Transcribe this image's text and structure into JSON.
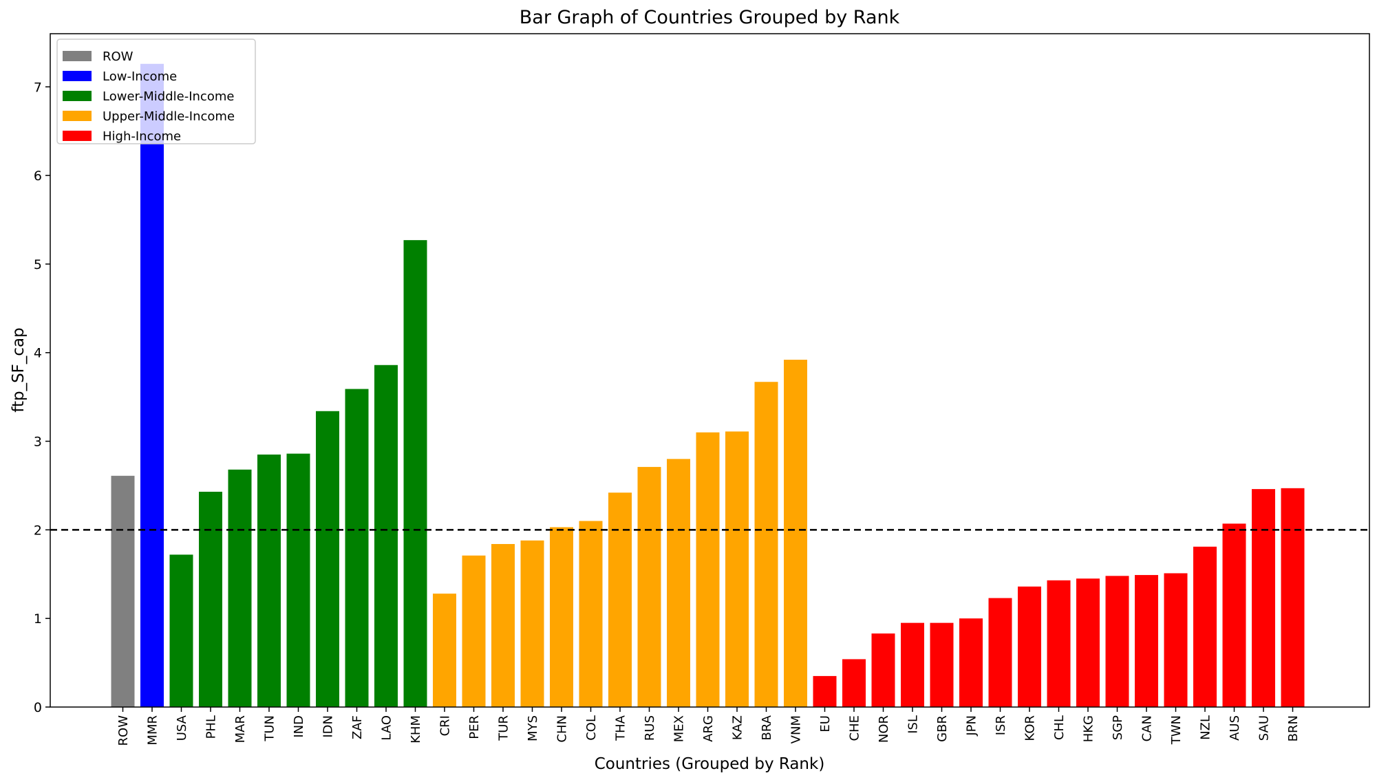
{
  "chart_data": {
    "type": "bar",
    "title": "Bar Graph of Countries Grouped by Rank",
    "xlabel": "Countries (Grouped by Rank)",
    "ylabel": "ftp_SF_cap",
    "ylim": [
      0,
      7.6
    ],
    "yticks": [
      0,
      1,
      2,
      3,
      4,
      5,
      6,
      7
    ],
    "reference_line": {
      "y": 2.0,
      "style": "dashed",
      "color": "#000000"
    },
    "legend_position": "top-left",
    "groups": [
      {
        "name": "ROW",
        "color": "#808080"
      },
      {
        "name": "Low-Income",
        "color": "#0000ff"
      },
      {
        "name": "Lower-Middle-Income",
        "color": "#008000"
      },
      {
        "name": "Upper-Middle-Income",
        "color": "#ffa500"
      },
      {
        "name": "High-Income",
        "color": "#ff0000"
      }
    ],
    "categories": [
      "ROW",
      "MMR",
      "USA",
      "PHL",
      "MAR",
      "TUN",
      "IND",
      "IDN",
      "ZAF",
      "LAO",
      "KHM",
      "CRI",
      "PER",
      "TUR",
      "MYS",
      "CHN",
      "COL",
      "THA",
      "RUS",
      "MEX",
      "ARG",
      "KAZ",
      "BRA",
      "VNM",
      "EU",
      "CHE",
      "NOR",
      "ISL",
      "GBR",
      "JPN",
      "ISR",
      "KOR",
      "CHL",
      "HKG",
      "SGP",
      "CAN",
      "TWN",
      "NZL",
      "AUS",
      "SAU",
      "BRN"
    ],
    "values": [
      2.61,
      7.26,
      1.72,
      2.43,
      2.68,
      2.85,
      2.86,
      3.34,
      3.59,
      3.86,
      5.27,
      1.28,
      1.71,
      1.84,
      1.88,
      2.03,
      2.1,
      2.42,
      2.71,
      2.8,
      3.1,
      3.11,
      3.67,
      3.92,
      0.35,
      0.54,
      0.83,
      0.95,
      0.95,
      1.0,
      1.23,
      1.36,
      1.43,
      1.45,
      1.48,
      1.49,
      1.51,
      1.81,
      2.07,
      2.46,
      2.47
    ],
    "group_index": [
      0,
      1,
      2,
      2,
      2,
      2,
      2,
      2,
      2,
      2,
      2,
      3,
      3,
      3,
      3,
      3,
      3,
      3,
      3,
      3,
      3,
      3,
      3,
      3,
      4,
      4,
      4,
      4,
      4,
      4,
      4,
      4,
      4,
      4,
      4,
      4,
      4,
      4,
      4,
      4,
      4
    ]
  }
}
